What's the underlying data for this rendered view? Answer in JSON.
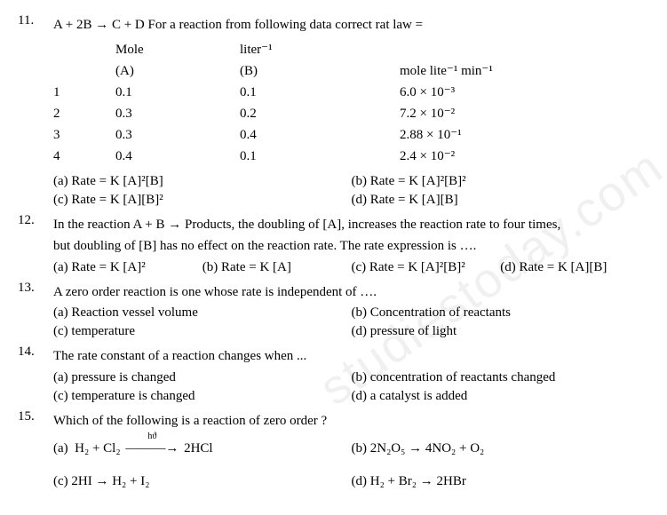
{
  "q11": {
    "num": "11.",
    "stem": "A + 2B → C + D For a reaction from following data correct rat law =",
    "table": {
      "header1": {
        "idx": "",
        "a": "Mole",
        "b": "liter⁻¹",
        "rate": ""
      },
      "header2": {
        "idx": "",
        "a": "(A)",
        "b": "(B)",
        "rate": "mole  lite⁻¹   min⁻¹"
      },
      "rows": [
        {
          "idx": "1",
          "a": "0.1",
          "b": "0.1",
          "rate": "6.0 × 10⁻³"
        },
        {
          "idx": "2",
          "a": "0.3",
          "b": "0.2",
          "rate": "7.2 × 10⁻²"
        },
        {
          "idx": "3",
          "a": "0.3",
          "b": "0.4",
          "rate": "2.88 × 10⁻¹"
        },
        {
          "idx": "4",
          "a": "0.4",
          "b": "0.1",
          "rate": "2.4 × 10⁻²"
        }
      ]
    },
    "opts": {
      "a": "(a) Rate = K [A]²[B]",
      "b": "(b) Rate = K [A]²[B]²",
      "c": "(c) Rate = K [A][B]²",
      "d": "(d) Rate = K [A][B]"
    }
  },
  "q12": {
    "num": "12.",
    "stem1": "In the reaction A + B → Products, the doubling of [A], increases the reaction rate to four times,",
    "stem2": "but doubling of [B] has no effect on the reaction rate. The rate expression is ….",
    "opts": {
      "a": "(a) Rate = K [A]²",
      "b": "(b) Rate = K [A]",
      "c": "(c) Rate = K [A]²[B]²",
      "d": "(d) Rate = K [A][B]"
    }
  },
  "q13": {
    "num": "13.",
    "stem": "A zero order reaction is one whose rate is independent of ….",
    "opts": {
      "a": "(a) Reaction vessel volume",
      "b": "(b) Concentration of reactants",
      "c": "(c) temperature",
      "d": "(d) pressure of light"
    }
  },
  "q14": {
    "num": "14.",
    "stem": "The rate constant of a reaction changes when ...",
    "opts": {
      "a": "(a) pressure is changed",
      "b": "(b) concentration of reactants changed",
      "c": "(c) temperature is changed",
      "d": "(d) a catalyst is added"
    }
  },
  "q15": {
    "num": "15.",
    "stem": "Which of the following is a reaction of zero order ?",
    "opts": {
      "a": "(a)  H₂ + Cl₂ ⟶ 2HCl",
      "a_top": "hϑ",
      "b": "(b)  2N₂O₅ → 4NO₂ + O₂",
      "c": "(c)  2HI → H₂ + I₂",
      "d": "(d)  H₂ + Br₂ → 2HBr"
    }
  },
  "watermark": "studiestoday.com"
}
